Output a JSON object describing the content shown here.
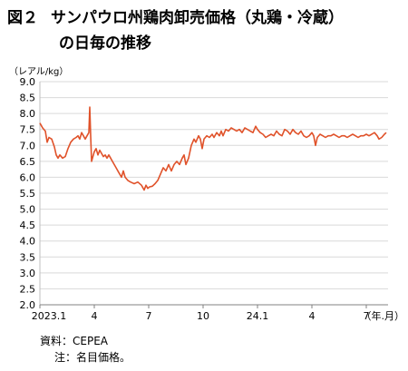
{
  "title": {
    "label": "図２",
    "line1": "サンパウロ州鶏肉卸売価格（丸鶏・冷蔵）",
    "line2": "の日毎の推移"
  },
  "unit_label": "（レアル/kg）",
  "notes": {
    "source": "資料：CEPEA",
    "note": "注：名目価格。"
  },
  "colors": {
    "line": "#e0522a",
    "grid": "#d9d9d9",
    "axis": "#bfbfbf"
  },
  "chart_data": {
    "type": "line",
    "title": "サンパウロ州鶏肉卸売価格（丸鶏・冷蔵）の日毎の推移",
    "ylabel": "（レアル/kg）",
    "xlabel": "（年.月）",
    "ylim": [
      2.0,
      9.0
    ],
    "yticks": [
      "2.0",
      "2.5",
      "3.0",
      "3.5",
      "4.0",
      "4.5",
      "5.0",
      "5.5",
      "6.0",
      "6.5",
      "7.0",
      "7.5",
      "8.0",
      "8.5",
      "9.0"
    ],
    "xticks": [
      "2023.1",
      "4",
      "7",
      "10",
      "24.1",
      "4",
      "7"
    ],
    "xtick_months": [
      0,
      3,
      6,
      9,
      12,
      15,
      18
    ],
    "x_unit_label": "（年.月）",
    "grid": true,
    "series": [
      {
        "points": [
          [
            0.0,
            7.7
          ],
          [
            0.15,
            7.55
          ],
          [
            0.3,
            7.45
          ],
          [
            0.4,
            7.1
          ],
          [
            0.5,
            7.25
          ],
          [
            0.65,
            7.2
          ],
          [
            0.8,
            6.95
          ],
          [
            0.9,
            6.7
          ],
          [
            1.0,
            6.6
          ],
          [
            1.1,
            6.7
          ],
          [
            1.25,
            6.6
          ],
          [
            1.4,
            6.65
          ],
          [
            1.55,
            6.9
          ],
          [
            1.7,
            7.1
          ],
          [
            1.85,
            7.2
          ],
          [
            2.0,
            7.25
          ],
          [
            2.1,
            7.3
          ],
          [
            2.2,
            7.2
          ],
          [
            2.3,
            7.4
          ],
          [
            2.4,
            7.3
          ],
          [
            2.5,
            7.2
          ],
          [
            2.6,
            7.3
          ],
          [
            2.7,
            7.4
          ],
          [
            2.75,
            8.2
          ],
          [
            2.8,
            7.3
          ],
          [
            2.85,
            6.5
          ],
          [
            2.9,
            6.6
          ],
          [
            3.0,
            6.8
          ],
          [
            3.1,
            6.9
          ],
          [
            3.2,
            6.7
          ],
          [
            3.3,
            6.85
          ],
          [
            3.4,
            6.75
          ],
          [
            3.5,
            6.65
          ],
          [
            3.6,
            6.7
          ],
          [
            3.7,
            6.6
          ],
          [
            3.8,
            6.7
          ],
          [
            3.9,
            6.6
          ],
          [
            4.0,
            6.5
          ],
          [
            4.1,
            6.4
          ],
          [
            4.2,
            6.3
          ],
          [
            4.35,
            6.15
          ],
          [
            4.5,
            6.0
          ],
          [
            4.6,
            6.2
          ],
          [
            4.7,
            6.0
          ],
          [
            4.85,
            5.9
          ],
          [
            5.0,
            5.85
          ],
          [
            5.2,
            5.8
          ],
          [
            5.4,
            5.85
          ],
          [
            5.6,
            5.75
          ],
          [
            5.75,
            5.6
          ],
          [
            5.85,
            5.75
          ],
          [
            5.95,
            5.65
          ],
          [
            6.05,
            5.7
          ],
          [
            6.2,
            5.72
          ],
          [
            6.35,
            5.8
          ],
          [
            6.5,
            5.9
          ],
          [
            6.65,
            6.1
          ],
          [
            6.8,
            6.3
          ],
          [
            6.95,
            6.2
          ],
          [
            7.1,
            6.4
          ],
          [
            7.25,
            6.2
          ],
          [
            7.4,
            6.4
          ],
          [
            7.55,
            6.5
          ],
          [
            7.7,
            6.4
          ],
          [
            7.85,
            6.6
          ],
          [
            7.95,
            6.7
          ],
          [
            8.05,
            6.4
          ],
          [
            8.2,
            6.6
          ],
          [
            8.35,
            7.0
          ],
          [
            8.5,
            7.2
          ],
          [
            8.6,
            7.1
          ],
          [
            8.75,
            7.3
          ],
          [
            8.85,
            7.2
          ],
          [
            8.95,
            6.9
          ],
          [
            9.05,
            7.2
          ],
          [
            9.2,
            7.3
          ],
          [
            9.35,
            7.25
          ],
          [
            9.5,
            7.35
          ],
          [
            9.6,
            7.25
          ],
          [
            9.75,
            7.4
          ],
          [
            9.9,
            7.3
          ],
          [
            10.0,
            7.45
          ],
          [
            10.1,
            7.3
          ],
          [
            10.25,
            7.5
          ],
          [
            10.4,
            7.45
          ],
          [
            10.55,
            7.55
          ],
          [
            10.7,
            7.5
          ],
          [
            10.85,
            7.45
          ],
          [
            11.0,
            7.5
          ],
          [
            11.15,
            7.4
          ],
          [
            11.3,
            7.55
          ],
          [
            11.45,
            7.5
          ],
          [
            11.6,
            7.45
          ],
          [
            11.75,
            7.4
          ],
          [
            11.9,
            7.6
          ],
          [
            12.0,
            7.5
          ],
          [
            12.15,
            7.4
          ],
          [
            12.3,
            7.35
          ],
          [
            12.45,
            7.25
          ],
          [
            12.6,
            7.3
          ],
          [
            12.75,
            7.35
          ],
          [
            12.9,
            7.3
          ],
          [
            13.05,
            7.45
          ],
          [
            13.2,
            7.35
          ],
          [
            13.35,
            7.3
          ],
          [
            13.5,
            7.5
          ],
          [
            13.65,
            7.45
          ],
          [
            13.8,
            7.35
          ],
          [
            13.95,
            7.5
          ],
          [
            14.1,
            7.4
          ],
          [
            14.25,
            7.35
          ],
          [
            14.4,
            7.45
          ],
          [
            14.55,
            7.3
          ],
          [
            14.7,
            7.25
          ],
          [
            14.85,
            7.3
          ],
          [
            15.0,
            7.4
          ],
          [
            15.1,
            7.3
          ],
          [
            15.2,
            7.0
          ],
          [
            15.3,
            7.25
          ],
          [
            15.45,
            7.35
          ],
          [
            15.6,
            7.3
          ],
          [
            15.75,
            7.25
          ],
          [
            15.9,
            7.3
          ],
          [
            16.05,
            7.3
          ],
          [
            16.2,
            7.35
          ],
          [
            16.35,
            7.3
          ],
          [
            16.5,
            7.25
          ],
          [
            16.65,
            7.3
          ],
          [
            16.8,
            7.3
          ],
          [
            16.95,
            7.25
          ],
          [
            17.1,
            7.3
          ],
          [
            17.25,
            7.35
          ],
          [
            17.4,
            7.3
          ],
          [
            17.55,
            7.25
          ],
          [
            17.7,
            7.3
          ],
          [
            17.85,
            7.3
          ],
          [
            18.0,
            7.35
          ],
          [
            18.15,
            7.3
          ],
          [
            18.3,
            7.35
          ],
          [
            18.45,
            7.4
          ],
          [
            18.6,
            7.3
          ],
          [
            18.7,
            7.2
          ],
          [
            18.85,
            7.25
          ],
          [
            19.0,
            7.35
          ],
          [
            19.1,
            7.4
          ]
        ]
      }
    ]
  }
}
